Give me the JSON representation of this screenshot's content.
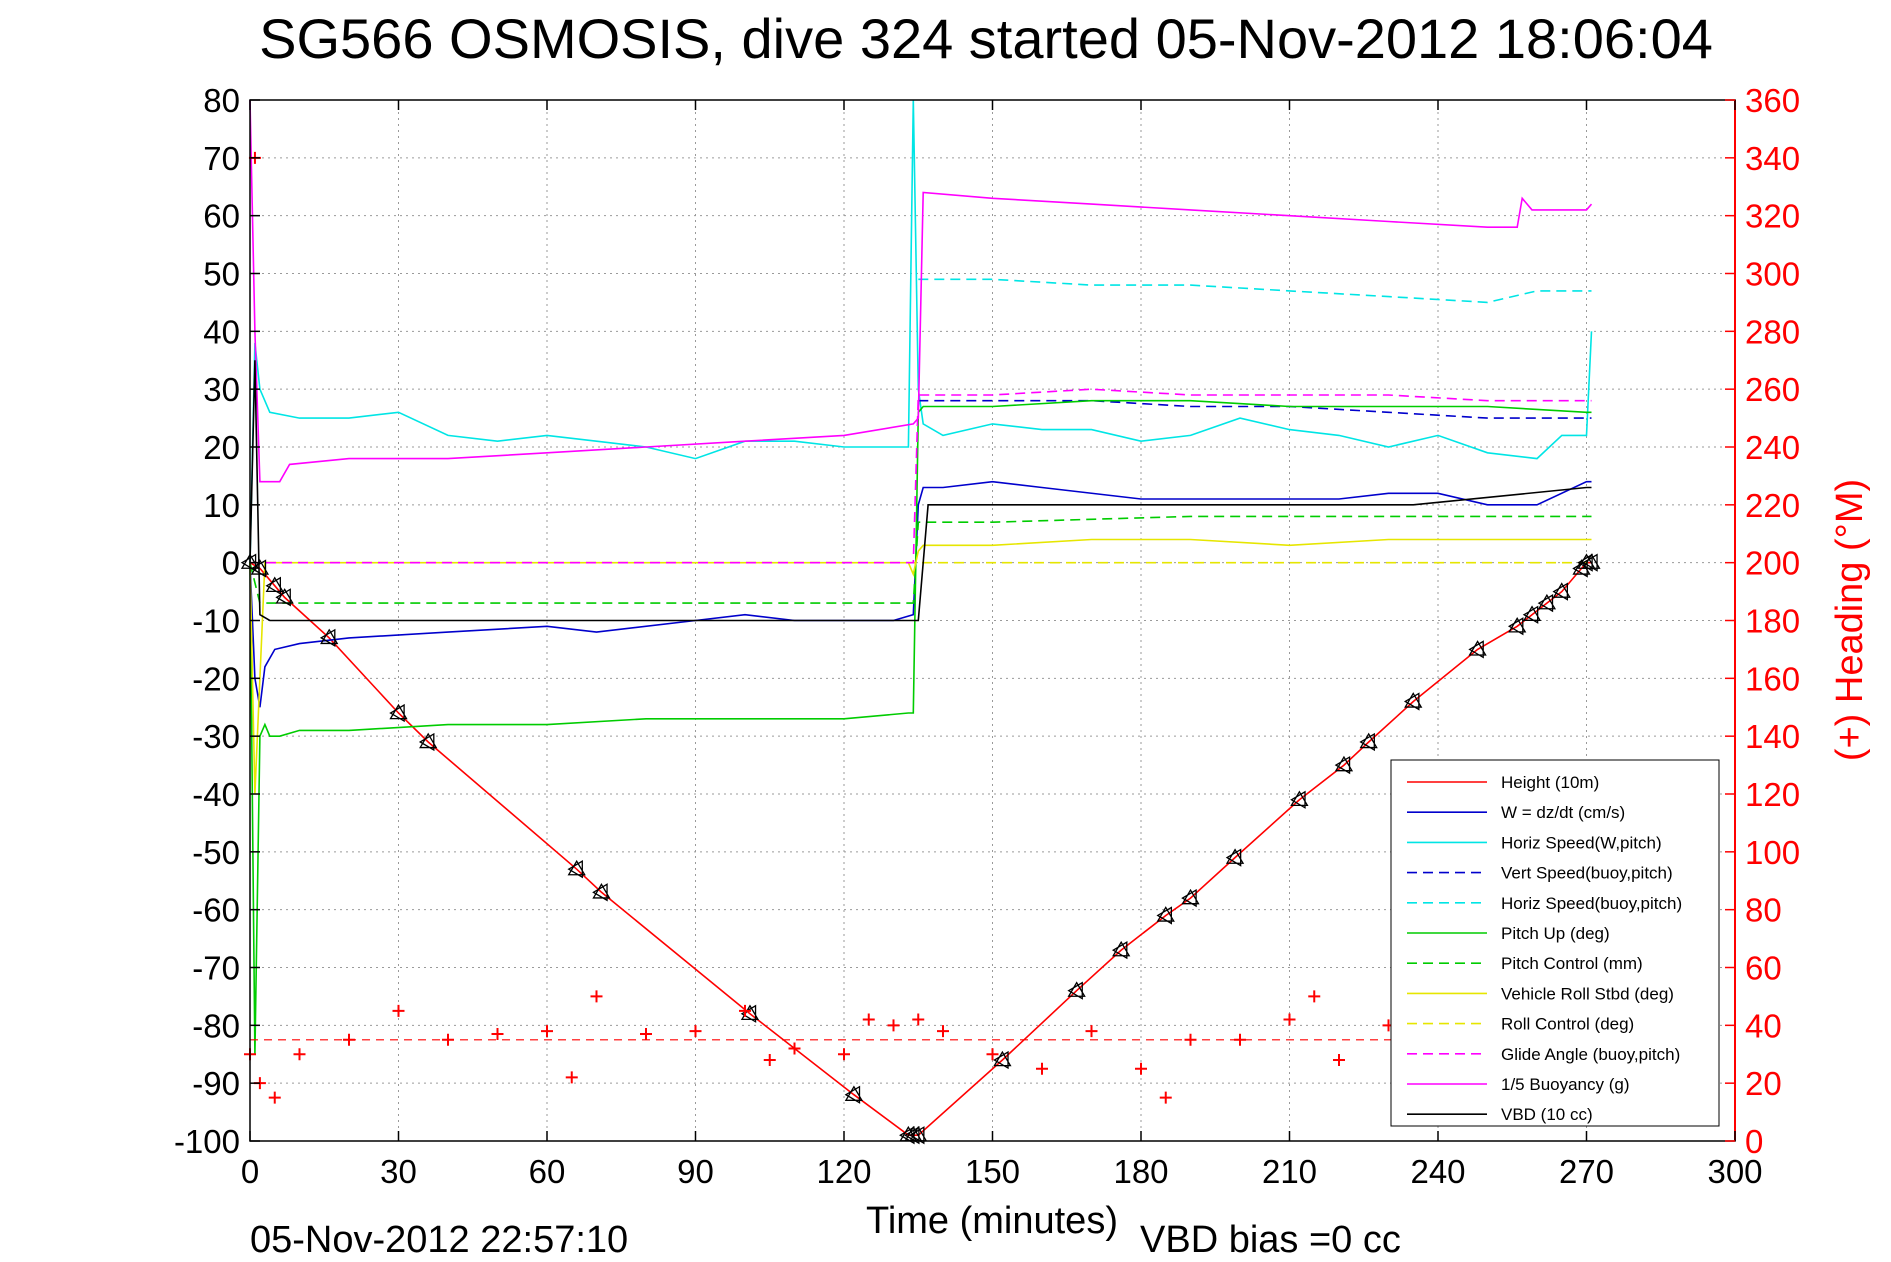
{
  "chart_data": {
    "type": "line",
    "title": "SG566 OSMOSIS, dive 324 started 05-Nov-2012 18:06:04",
    "xlabel": "Time (minutes)",
    "ylabel": "",
    "y2label": "(+) Heading (°M)",
    "xlim": [
      0,
      300
    ],
    "ylim": [
      -100,
      80
    ],
    "y2lim": [
      0,
      360
    ],
    "xticks": [
      "0",
      "30",
      "60",
      "90",
      "120",
      "150",
      "180",
      "210",
      "240",
      "270",
      "300"
    ],
    "yticks": [
      "80",
      "70",
      "60",
      "50",
      "40",
      "30",
      "20",
      "10",
      "0",
      "-10",
      "-20",
      "-30",
      "-40",
      "-50",
      "-60",
      "-70",
      "-80",
      "-90",
      "-100"
    ],
    "y2ticks": [
      "360",
      "340",
      "320",
      "300",
      "280",
      "260",
      "240",
      "220",
      "200",
      "180",
      "160",
      "140",
      "120",
      "100",
      "80",
      "60",
      "40",
      "20",
      "0"
    ],
    "grid": true,
    "legend_position": "lower-right",
    "footer_left": "05-Nov-2012 22:57:10",
    "footer_right": "VBD bias =0 cc",
    "series": [
      {
        "name": "Height (10m)",
        "color": "#ff0000",
        "style": "solid",
        "marker": "triangles",
        "x": [
          0,
          2,
          5,
          7,
          16,
          30,
          36,
          66,
          71,
          101,
          122,
          133,
          134,
          135,
          152,
          167,
          176,
          185,
          190,
          199,
          212,
          221,
          226,
          235,
          248,
          256,
          259,
          262,
          265,
          269,
          270,
          271
        ],
        "y": [
          0,
          -1,
          -4,
          -6,
          -13,
          -26,
          -31,
          -53,
          -57,
          -78,
          -92,
          -99,
          -99,
          -99,
          -86,
          -74,
          -67,
          -61,
          -58,
          -51,
          -41,
          -35,
          -31,
          -24,
          -15,
          -11,
          -9,
          -7,
          -5,
          -1,
          0,
          0
        ]
      },
      {
        "name": "W = dz/dt (cm/s)",
        "color": "#0000cc",
        "style": "solid",
        "x": [
          0,
          1,
          2,
          3,
          5,
          10,
          20,
          40,
          60,
          70,
          90,
          100,
          110,
          130,
          134,
          135,
          136,
          140,
          150,
          160,
          180,
          200,
          220,
          230,
          240,
          250,
          260,
          270,
          271
        ],
        "y": [
          0,
          -20,
          -25,
          -18,
          -15,
          -14,
          -13,
          -12,
          -11,
          -12,
          -10,
          -9,
          -10,
          -10,
          -9,
          10,
          13,
          13,
          14,
          13,
          11,
          11,
          11,
          12,
          12,
          10,
          10,
          14,
          14
        ]
      },
      {
        "name": "Horiz Speed(W,pitch)",
        "color": "#00e5e5",
        "style": "solid",
        "x": [
          0,
          1,
          2,
          4,
          10,
          20,
          30,
          40,
          50,
          60,
          70,
          80,
          90,
          100,
          110,
          120,
          130,
          133,
          134,
          135,
          136,
          140,
          150,
          160,
          170,
          180,
          190,
          200,
          210,
          220,
          230,
          240,
          250,
          260,
          265,
          270,
          271
        ],
        "y": [
          0,
          38,
          30,
          26,
          25,
          25,
          26,
          22,
          21,
          22,
          21,
          20,
          18,
          21,
          21,
          20,
          20,
          20,
          80,
          30,
          24,
          22,
          24,
          23,
          23,
          21,
          22,
          25,
          23,
          22,
          20,
          22,
          19,
          18,
          22,
          22,
          40
        ]
      },
      {
        "name": "Vert Speed(buoy,pitch)",
        "color": "#0000cc",
        "style": "dashed",
        "x": [
          135,
          137,
          150,
          170,
          190,
          210,
          230,
          250,
          270,
          271
        ],
        "y": [
          28,
          28,
          28,
          28,
          27,
          27,
          26,
          25,
          25,
          25
        ]
      },
      {
        "name": "Horiz Speed(buoy,pitch)",
        "color": "#00e5e5",
        "style": "dashed",
        "x": [
          135,
          137,
          150,
          170,
          190,
          210,
          230,
          250,
          255,
          260,
          270,
          271
        ],
        "y": [
          49,
          49,
          49,
          48,
          48,
          47,
          46,
          45,
          46,
          47,
          47,
          47
        ]
      },
      {
        "name": "Pitch Up (deg)",
        "color": "#00cc00",
        "style": "solid",
        "x": [
          0,
          1,
          2,
          3,
          4,
          6,
          10,
          20,
          40,
          60,
          80,
          100,
          120,
          133,
          134,
          135,
          136,
          150,
          170,
          190,
          210,
          230,
          250,
          270,
          271
        ],
        "y": [
          0,
          -85,
          -30,
          -28,
          -30,
          -30,
          -29,
          -29,
          -28,
          -28,
          -27,
          -27,
          -27,
          -26,
          -26,
          26,
          27,
          27,
          28,
          28,
          27,
          27,
          27,
          26,
          26
        ]
      },
      {
        "name": "Pitch Control (mm)",
        "color": "#00cc00",
        "style": "dashed",
        "x": [
          0,
          2,
          3,
          134,
          135,
          136,
          150,
          190,
          230,
          270,
          271
        ],
        "y": [
          0,
          -7,
          -7,
          -7,
          7,
          7,
          7,
          8,
          8,
          8,
          8
        ]
      },
      {
        "name": "Vehicle Roll Stbd (deg)",
        "color": "#e6e600",
        "style": "solid",
        "x": [
          0,
          1,
          2,
          3,
          5,
          10,
          20,
          40,
          60,
          80,
          100,
          120,
          133,
          134,
          135,
          136,
          150,
          170,
          190,
          210,
          230,
          250,
          270,
          271
        ],
        "y": [
          0,
          -40,
          -20,
          0,
          0,
          0,
          0,
          0,
          0,
          0,
          0,
          0,
          0,
          -2,
          2,
          3,
          3,
          4,
          4,
          3,
          4,
          4,
          4,
          4
        ]
      },
      {
        "name": "Roll Control (deg)",
        "color": "#e6e600",
        "style": "dashed",
        "x": [
          0,
          2,
          3,
          134,
          135,
          136,
          271
        ],
        "y": [
          0,
          0,
          0,
          0,
          0,
          0,
          0
        ]
      },
      {
        "name": "Glide Angle (buoy,pitch)",
        "color": "#ff00ff",
        "style": "dashed",
        "x": [
          0,
          2,
          3,
          134,
          135,
          137,
          150,
          170,
          190,
          210,
          230,
          250,
          270,
          271
        ],
        "y": [
          0,
          0,
          0,
          0,
          29,
          29,
          29,
          30,
          29,
          29,
          29,
          28,
          28,
          28
        ]
      },
      {
        "name": "1/5 Buoyancy (g)",
        "color": "#ff00ff",
        "style": "solid",
        "x": [
          0,
          1,
          2,
          6,
          8,
          20,
          40,
          60,
          80,
          100,
          120,
          134,
          135,
          136,
          150,
          170,
          190,
          210,
          230,
          250,
          256,
          257,
          259,
          260,
          262,
          270,
          271
        ],
        "y": [
          80,
          40,
          14,
          14,
          17,
          18,
          18,
          19,
          20,
          21,
          22,
          24,
          25,
          64,
          63,
          62,
          61,
          60,
          59,
          58,
          58,
          63,
          61,
          61,
          61,
          61,
          62
        ]
      },
      {
        "name": "VBD (10 cc)",
        "color": "#000000",
        "style": "solid",
        "x": [
          0,
          1,
          2,
          4,
          134,
          135,
          137,
          200,
          235,
          270,
          271
        ],
        "y": [
          0,
          35,
          -9,
          -10,
          -10,
          -10,
          10,
          10,
          10,
          13,
          13
        ]
      },
      {
        "name": "Heading",
        "axis": "right",
        "color": "#ff0000",
        "style": "dashed",
        "marker": "plus",
        "x": [
          0,
          1,
          2,
          5,
          10,
          20,
          30,
          40,
          50,
          60,
          65,
          70,
          80,
          90,
          100,
          105,
          110,
          120,
          125,
          130,
          135,
          140,
          150,
          160,
          170,
          180,
          185,
          190,
          200,
          210,
          215,
          220,
          230,
          240,
          250
        ],
        "y": [
          30,
          340,
          20,
          15,
          30,
          35,
          45,
          35,
          37,
          38,
          22,
          50,
          37,
          38,
          45,
          28,
          32,
          30,
          42,
          40,
          42,
          38,
          30,
          25,
          38,
          25,
          15,
          35,
          35,
          42,
          50,
          28,
          40,
          35,
          38
        ],
        "mean": 35
      }
    ]
  }
}
